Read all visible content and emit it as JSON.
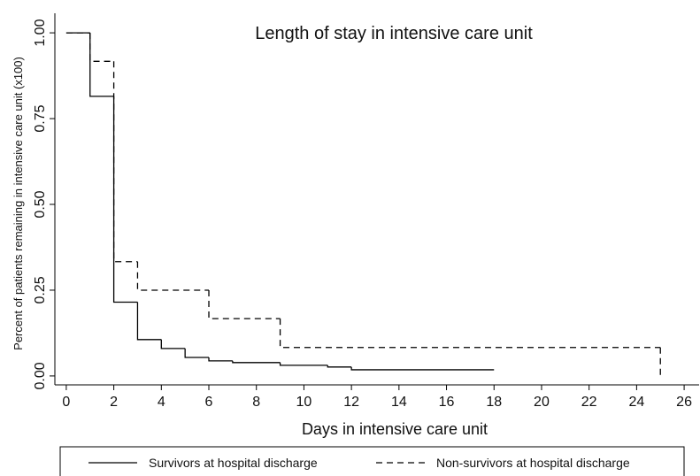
{
  "chart_data": {
    "type": "step",
    "title": "Length of stay in intensive care unit",
    "x_label": "Days in intensive care unit",
    "y_label": "Percent of patients remaining in intensive care unit (x100)",
    "xlim": [
      -0.48,
      26.63
    ],
    "ylim": [
      -0.026,
      1.057
    ],
    "xticks": [
      0,
      2,
      4,
      6,
      8,
      10,
      12,
      14,
      16,
      18,
      20,
      22,
      24,
      26
    ],
    "yticks": [
      {
        "value": 0,
        "label": "0.00"
      },
      {
        "value": 0.25,
        "label": "0.25"
      },
      {
        "value": 0.5,
        "label": "0.50"
      },
      {
        "value": 0.75,
        "label": "0.75"
      },
      {
        "value": 1,
        "label": "1.00"
      }
    ],
    "series": [
      {
        "name": "Survivors at hospital discharge",
        "color": "#000000",
        "dash": "none",
        "x": [
          0,
          1,
          2,
          3,
          4,
          5,
          6,
          7,
          9,
          11,
          12,
          18
        ],
        "values": [
          1,
          0.815,
          0.215,
          0.106,
          0.08,
          0.054,
          0.044,
          0.039,
          0.031,
          0.026,
          0.018,
          0.018
        ]
      },
      {
        "name": "Non-survivors at hospital discharge",
        "color": "#000000",
        "dash": "7,5",
        "x": [
          0,
          1,
          2,
          3,
          6,
          9,
          25
        ],
        "values": [
          1,
          0.917,
          0.333,
          0.25,
          0.167,
          0.083,
          0
        ]
      }
    ]
  }
}
